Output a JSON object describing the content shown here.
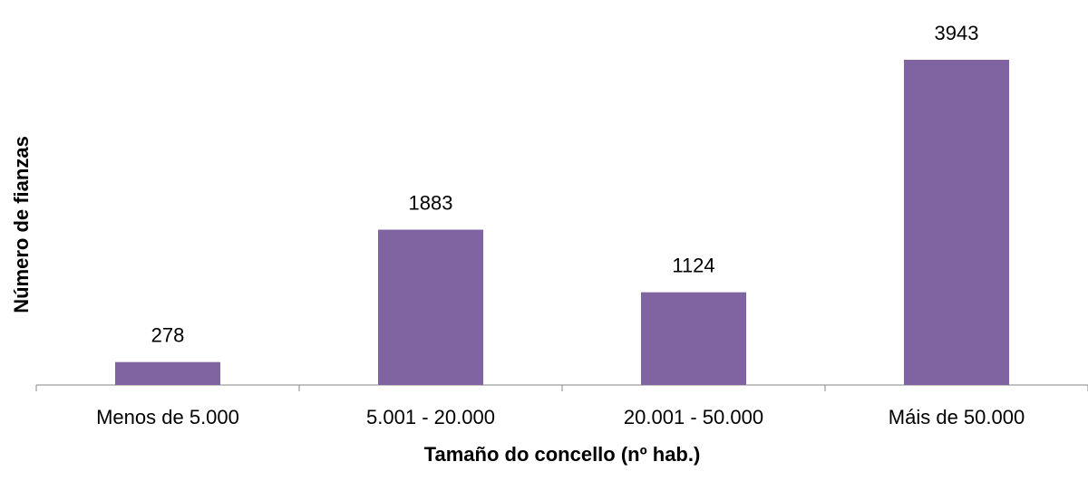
{
  "chart_data": {
    "type": "bar",
    "x_label": "Tamaño do concello (nº hab.)",
    "y_label": "Número de fianzas",
    "categories": [
      "Menos de 5.000",
      "5.001 - 20.000",
      "20.001 - 50.000",
      "Máis de 50.000"
    ],
    "values": [
      278,
      1883,
      1124,
      3943
    ],
    "color": "#8064a2"
  }
}
